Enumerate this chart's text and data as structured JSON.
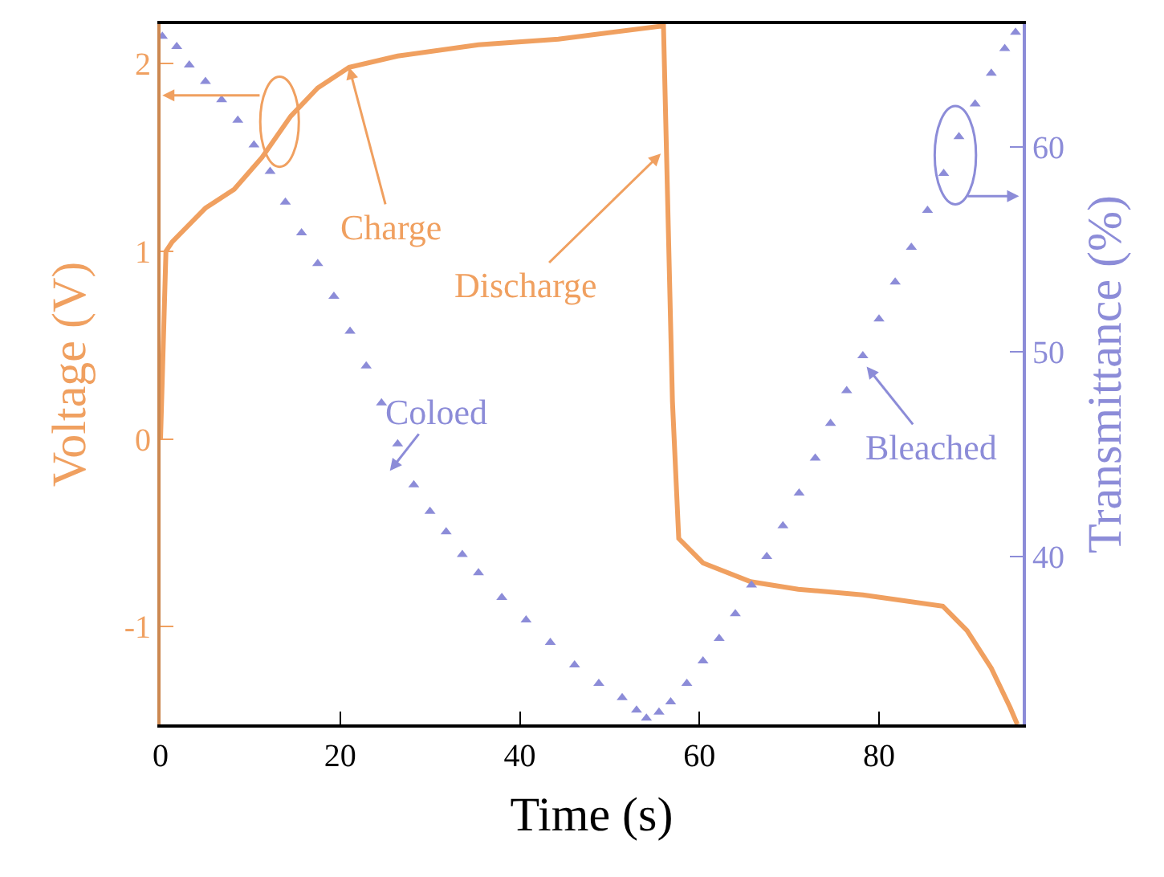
{
  "chart_data": {
    "type": "line",
    "xlabel": "Time (s)",
    "ylabel": "Voltage (V)",
    "y2label": "Transmittance (%)",
    "xlim": [
      0,
      96
    ],
    "xticks": [
      0,
      20,
      40,
      60,
      80
    ],
    "ylim": [
      -1.52,
      2.21
    ],
    "yticks": [
      -1,
      0,
      1,
      2
    ],
    "y2lim": [
      31.8,
      66
    ],
    "y2ticks": [
      40,
      50,
      60
    ],
    "series": [
      {
        "color": "#f0a060",
        "line_style": "solid",
        "marker": "none",
        "x": [
          0,
          0.6,
          1.3,
          5,
          8.2,
          11.3,
          14.5,
          17.5,
          21,
          26.4,
          35.4,
          44.3,
          55.9,
          56,
          57,
          57.7,
          60.4,
          65.7,
          71,
          78.2,
          87.1,
          89.8,
          92.5,
          94.6,
          95.4
        ],
        "values": [
          0,
          1.0,
          1.05,
          1.23,
          1.33,
          1.5,
          1.72,
          1.87,
          1.98,
          2.04,
          2.1,
          2.13,
          2.2,
          2.2,
          0.2,
          -0.53,
          -0.66,
          -0.76,
          -0.8,
          -0.83,
          -0.89,
          -1.02,
          -1.22,
          -1.43,
          -1.52
        ]
      },
      {
        "type": "scatter",
        "axis": "y2",
        "color": "#8c8cd8",
        "marker": "triangle",
        "x": [
          0.2,
          1.8,
          3.2,
          5,
          6.8,
          8.6,
          10.4,
          12.2,
          13.9,
          15.7,
          17.5,
          19.3,
          21.1,
          22.9,
          24.6,
          26.4,
          28.2,
          30,
          31.8,
          33.6,
          35.4,
          38,
          40.7,
          43.4,
          46.1,
          48.8,
          51.4,
          53,
          54.1,
          55.5,
          56.8,
          58.6,
          60.4,
          62.2,
          64,
          65.8,
          67.5,
          69.3,
          71.1,
          72.9,
          74.6,
          76.4,
          78.2,
          80,
          81.8,
          83.6,
          85.4,
          87.2,
          88.9,
          90.7,
          92.5,
          94,
          95.2
        ],
        "values": [
          65.4,
          64.9,
          64.0,
          63.2,
          62.3,
          61.3,
          60.1,
          58.8,
          57.3,
          55.8,
          54.3,
          52.7,
          51.0,
          49.3,
          47.5,
          45.5,
          43.5,
          42.2,
          41.2,
          40.1,
          39.2,
          38.0,
          36.9,
          35.8,
          34.7,
          33.8,
          33.1,
          32.5,
          32.1,
          32.4,
          32.9,
          33.8,
          34.9,
          36.0,
          37.2,
          38.6,
          40.0,
          41.5,
          43.1,
          44.8,
          46.5,
          48.1,
          49.8,
          51.6,
          53.4,
          55.1,
          56.9,
          58.7,
          60.5,
          62.1,
          63.6,
          64.8,
          65.6
        ]
      }
    ],
    "annotations": [
      {
        "text": "Charge",
        "x": 21,
        "y": 1.98
      },
      {
        "text": "Discharge",
        "x": 55.7,
        "y": 1.52
      },
      "Coloed",
      "Bleached"
    ]
  }
}
